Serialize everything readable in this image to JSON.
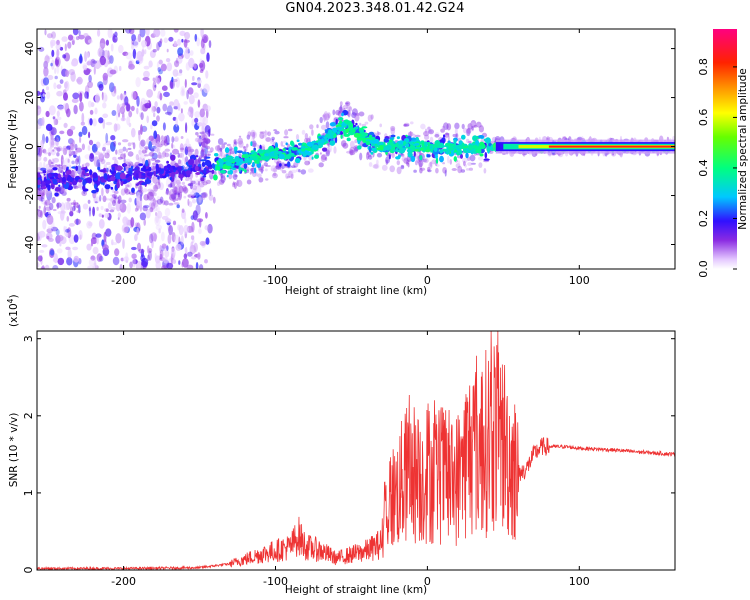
{
  "title": "GN04.2023.348.01.42.G24",
  "chart_data": [
    {
      "type": "heatmap",
      "xlabel": "Height of straight line (km)",
      "ylabel": "Frequency (Hz)",
      "xlim": [
        -257,
        163
      ],
      "ylim": [
        -50,
        48
      ],
      "xticks": [
        -200,
        -100,
        0,
        100
      ],
      "yticks": [
        -40,
        -20,
        0,
        20,
        40
      ],
      "colorbar": {
        "label": "Normalized spectral amplitude",
        "range": [
          0,
          0.95
        ],
        "ticks": [
          0.0,
          0.2,
          0.4,
          0.6,
          0.8
        ],
        "tick_labels": [
          "0.0",
          "0.2",
          "0.4",
          "0.6",
          "0.8"
        ]
      },
      "ridge": [
        {
          "x": -250,
          "f": -14
        },
        {
          "x": -220,
          "f": -13
        },
        {
          "x": -190,
          "f": -12
        },
        {
          "x": -160,
          "f": -9
        },
        {
          "x": -140,
          "f": -8
        },
        {
          "x": -120,
          "f": -5
        },
        {
          "x": -100,
          "f": -3
        },
        {
          "x": -80,
          "f": -2
        },
        {
          "x": -65,
          "f": 4
        },
        {
          "x": -55,
          "f": 9
        },
        {
          "x": -45,
          "f": 5
        },
        {
          "x": -30,
          "f": 0
        },
        {
          "x": -10,
          "f": 0
        },
        {
          "x": 10,
          "f": -1
        },
        {
          "x": 30,
          "f": 0
        },
        {
          "x": 50,
          "f": 0
        },
        {
          "x": 80,
          "f": 0
        },
        {
          "x": 120,
          "f": 0
        },
        {
          "x": 163,
          "f": 0
        }
      ],
      "grid": false,
      "legend": "colorbar-right"
    },
    {
      "type": "line",
      "xlabel": "Height of straight line (km)",
      "ylabel": "SNR (10 * v/v)",
      "y_multiplier": "(x10",
      "y_multiplier_exp": "4",
      "y_multiplier_close": ")",
      "xlim": [
        -257,
        163
      ],
      "ylim": [
        0,
        3.1
      ],
      "xticks": [
        -200,
        -100,
        0,
        100
      ],
      "yticks": [
        0,
        1,
        2,
        3
      ],
      "series": [
        {
          "color": "#ee3333",
          "x": [
            -257,
            -200,
            -150,
            -130,
            -110,
            -100,
            -90,
            -85,
            -80,
            -70,
            -60,
            -50,
            -40,
            -30,
            -28,
            -25,
            -20,
            -15,
            -10,
            -5,
            0,
            5,
            10,
            15,
            20,
            25,
            30,
            35,
            40,
            45,
            50,
            55,
            60,
            65,
            70,
            75,
            80,
            90,
            100,
            120,
            140,
            163
          ],
          "y": [
            0.02,
            0.02,
            0.03,
            0.08,
            0.2,
            0.25,
            0.3,
            0.45,
            0.3,
            0.25,
            0.15,
            0.2,
            0.25,
            0.35,
            0.7,
            0.9,
            1.0,
            1.2,
            1.3,
            1.15,
            1.3,
            1.2,
            1.25,
            1.1,
            1.2,
            1.45,
            1.6,
            1.55,
            1.7,
            1.85,
            1.65,
            1.4,
            1.25,
            1.3,
            1.5,
            1.6,
            1.6,
            1.6,
            1.58,
            1.56,
            1.53,
            1.5
          ]
        }
      ],
      "grid": false,
      "legend": "none"
    }
  ]
}
